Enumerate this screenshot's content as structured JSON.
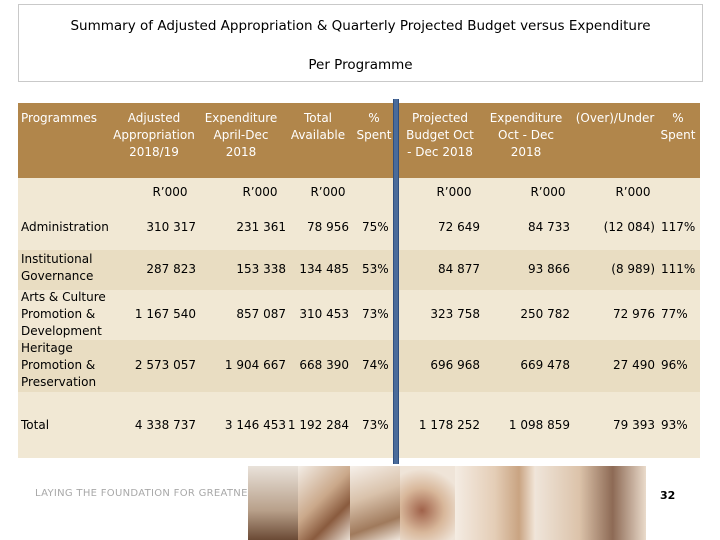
{
  "title": {
    "line1": "Summary of Adjusted Appropriation & Quarterly Projected Budget versus Expenditure",
    "line2": "Per Programme"
  },
  "table": {
    "headers": {
      "programmes": "Programmes",
      "adjusted": "Adjusted Appropriation 2018/19",
      "exp_aprdec": "Expenditure April-Dec 2018",
      "total_available": "Total Available",
      "pct_spent1": "% Spent",
      "projected": "Projected Budget Oct - Dec 2018",
      "exp_octdec": "Expenditure Oct - Dec 2018",
      "over_under": "(Over)/Under",
      "pct_spent2": "% Spent"
    },
    "units": {
      "adjusted": "R’000",
      "exp_aprdec": "R’000",
      "total_available": "R’000",
      "projected": "R’000",
      "exp_octdec": "R’000",
      "over_under": "R’000"
    },
    "rows": [
      {
        "programme": "Administration",
        "adjusted": "310 317",
        "exp_aprdec": "231 361",
        "total_available": "78 956",
        "pct1": "75%",
        "projected": "72 649",
        "exp_octdec": "84 733",
        "over_under": "(12 084)",
        "pct2": "117%"
      },
      {
        "programme": "Institutional Governance",
        "adjusted": "287 823",
        "exp_aprdec": "153 338",
        "total_available": "134 485",
        "pct1": "53%",
        "projected": "84 877",
        "exp_octdec": "93 866",
        "over_under": "(8 989)",
        "pct2": "111%"
      },
      {
        "programme": "Arts & Culture Promotion & Development",
        "adjusted": "1 167 540",
        "exp_aprdec": "857 087",
        "total_available": "310 453",
        "pct1": "73%",
        "projected": "323 758",
        "exp_octdec": "250 782",
        "over_under": "72 976",
        "pct2": "77%"
      },
      {
        "programme": "Heritage Promotion & Preservation",
        "adjusted": "2 573 057",
        "exp_aprdec": "1 904 667",
        "total_available": "668 390",
        "pct1": "74%",
        "projected": "696 968",
        "exp_octdec": "669 478",
        "over_under": "27 490",
        "pct2": "96%"
      },
      {
        "programme": "Total",
        "adjusted": "4 338 737",
        "exp_aprdec": "3 146 453",
        "total_available": "1 192 284",
        "pct1": "73%",
        "projected": "1 178 252",
        "exp_octdec": "1 098 859",
        "over_under": "79 393",
        "pct2": "93%"
      }
    ]
  },
  "footer": {
    "tagline": "LAYING THE FOUNDATION FOR GREATNESS",
    "page_number": "32"
  },
  "colors": {
    "header_bg": "#b1864b",
    "band_light": "#f1e8d4",
    "band_dark": "#e9ddc2",
    "divider": "#4a6b9a"
  }
}
